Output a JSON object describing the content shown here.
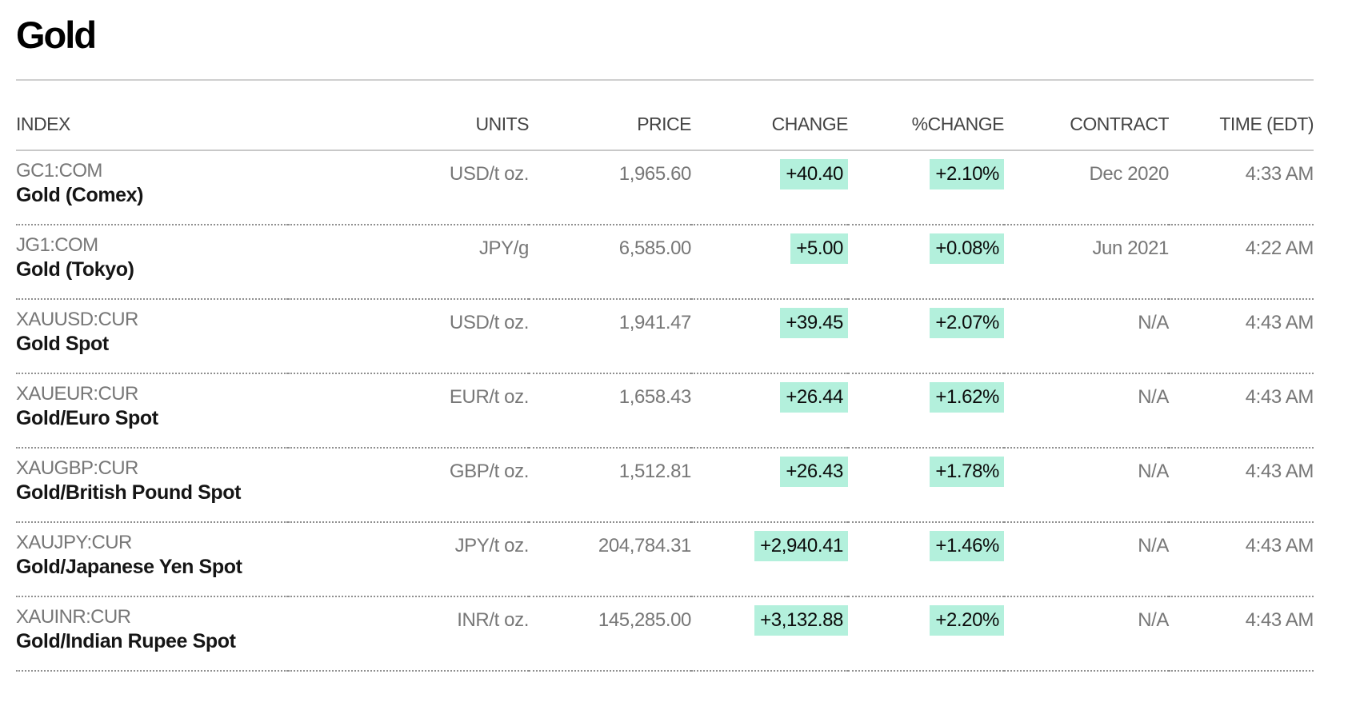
{
  "page": {
    "title": "Gold"
  },
  "colors": {
    "positive_bg": "#b3f0dc",
    "muted_text": "#777777",
    "name_text": "#151515"
  },
  "table": {
    "headers": {
      "index": "INDEX",
      "units": "UNITS",
      "price": "PRICE",
      "change": "CHANGE",
      "pct_change": "%CHANGE",
      "contract": "CONTRACT",
      "time": "TIME (EDT)"
    },
    "rows": [
      {
        "ticker": "GC1:COM",
        "name": "Gold (Comex)",
        "units": "USD/t oz.",
        "price": "1,965.60",
        "change": "+40.40",
        "pct_change": "+2.10%",
        "contract": "Dec 2020",
        "time": "4:33 AM"
      },
      {
        "ticker": "JG1:COM",
        "name": "Gold (Tokyo)",
        "units": "JPY/g",
        "price": "6,585.00",
        "change": "+5.00",
        "pct_change": "+0.08%",
        "contract": "Jun 2021",
        "time": "4:22 AM"
      },
      {
        "ticker": "XAUUSD:CUR",
        "name": "Gold Spot",
        "units": "USD/t oz.",
        "price": "1,941.47",
        "change": "+39.45",
        "pct_change": "+2.07%",
        "contract": "N/A",
        "time": "4:43 AM"
      },
      {
        "ticker": "XAUEUR:CUR",
        "name": "Gold/Euro Spot",
        "units": "EUR/t oz.",
        "price": "1,658.43",
        "change": "+26.44",
        "pct_change": "+1.62%",
        "contract": "N/A",
        "time": "4:43 AM"
      },
      {
        "ticker": "XAUGBP:CUR",
        "name": "Gold/British Pound Spot",
        "units": "GBP/t oz.",
        "price": "1,512.81",
        "change": "+26.43",
        "pct_change": "+1.78%",
        "contract": "N/A",
        "time": "4:43 AM"
      },
      {
        "ticker": "XAUJPY:CUR",
        "name": "Gold/Japanese Yen Spot",
        "units": "JPY/t oz.",
        "price": "204,784.31",
        "change": "+2,940.41",
        "pct_change": "+1.46%",
        "contract": "N/A",
        "time": "4:43 AM"
      },
      {
        "ticker": "XAUINR:CUR",
        "name": "Gold/Indian Rupee Spot",
        "units": "INR/t oz.",
        "price": "145,285.00",
        "change": "+3,132.88",
        "pct_change": "+2.20%",
        "contract": "N/A",
        "time": "4:43 AM"
      }
    ]
  }
}
